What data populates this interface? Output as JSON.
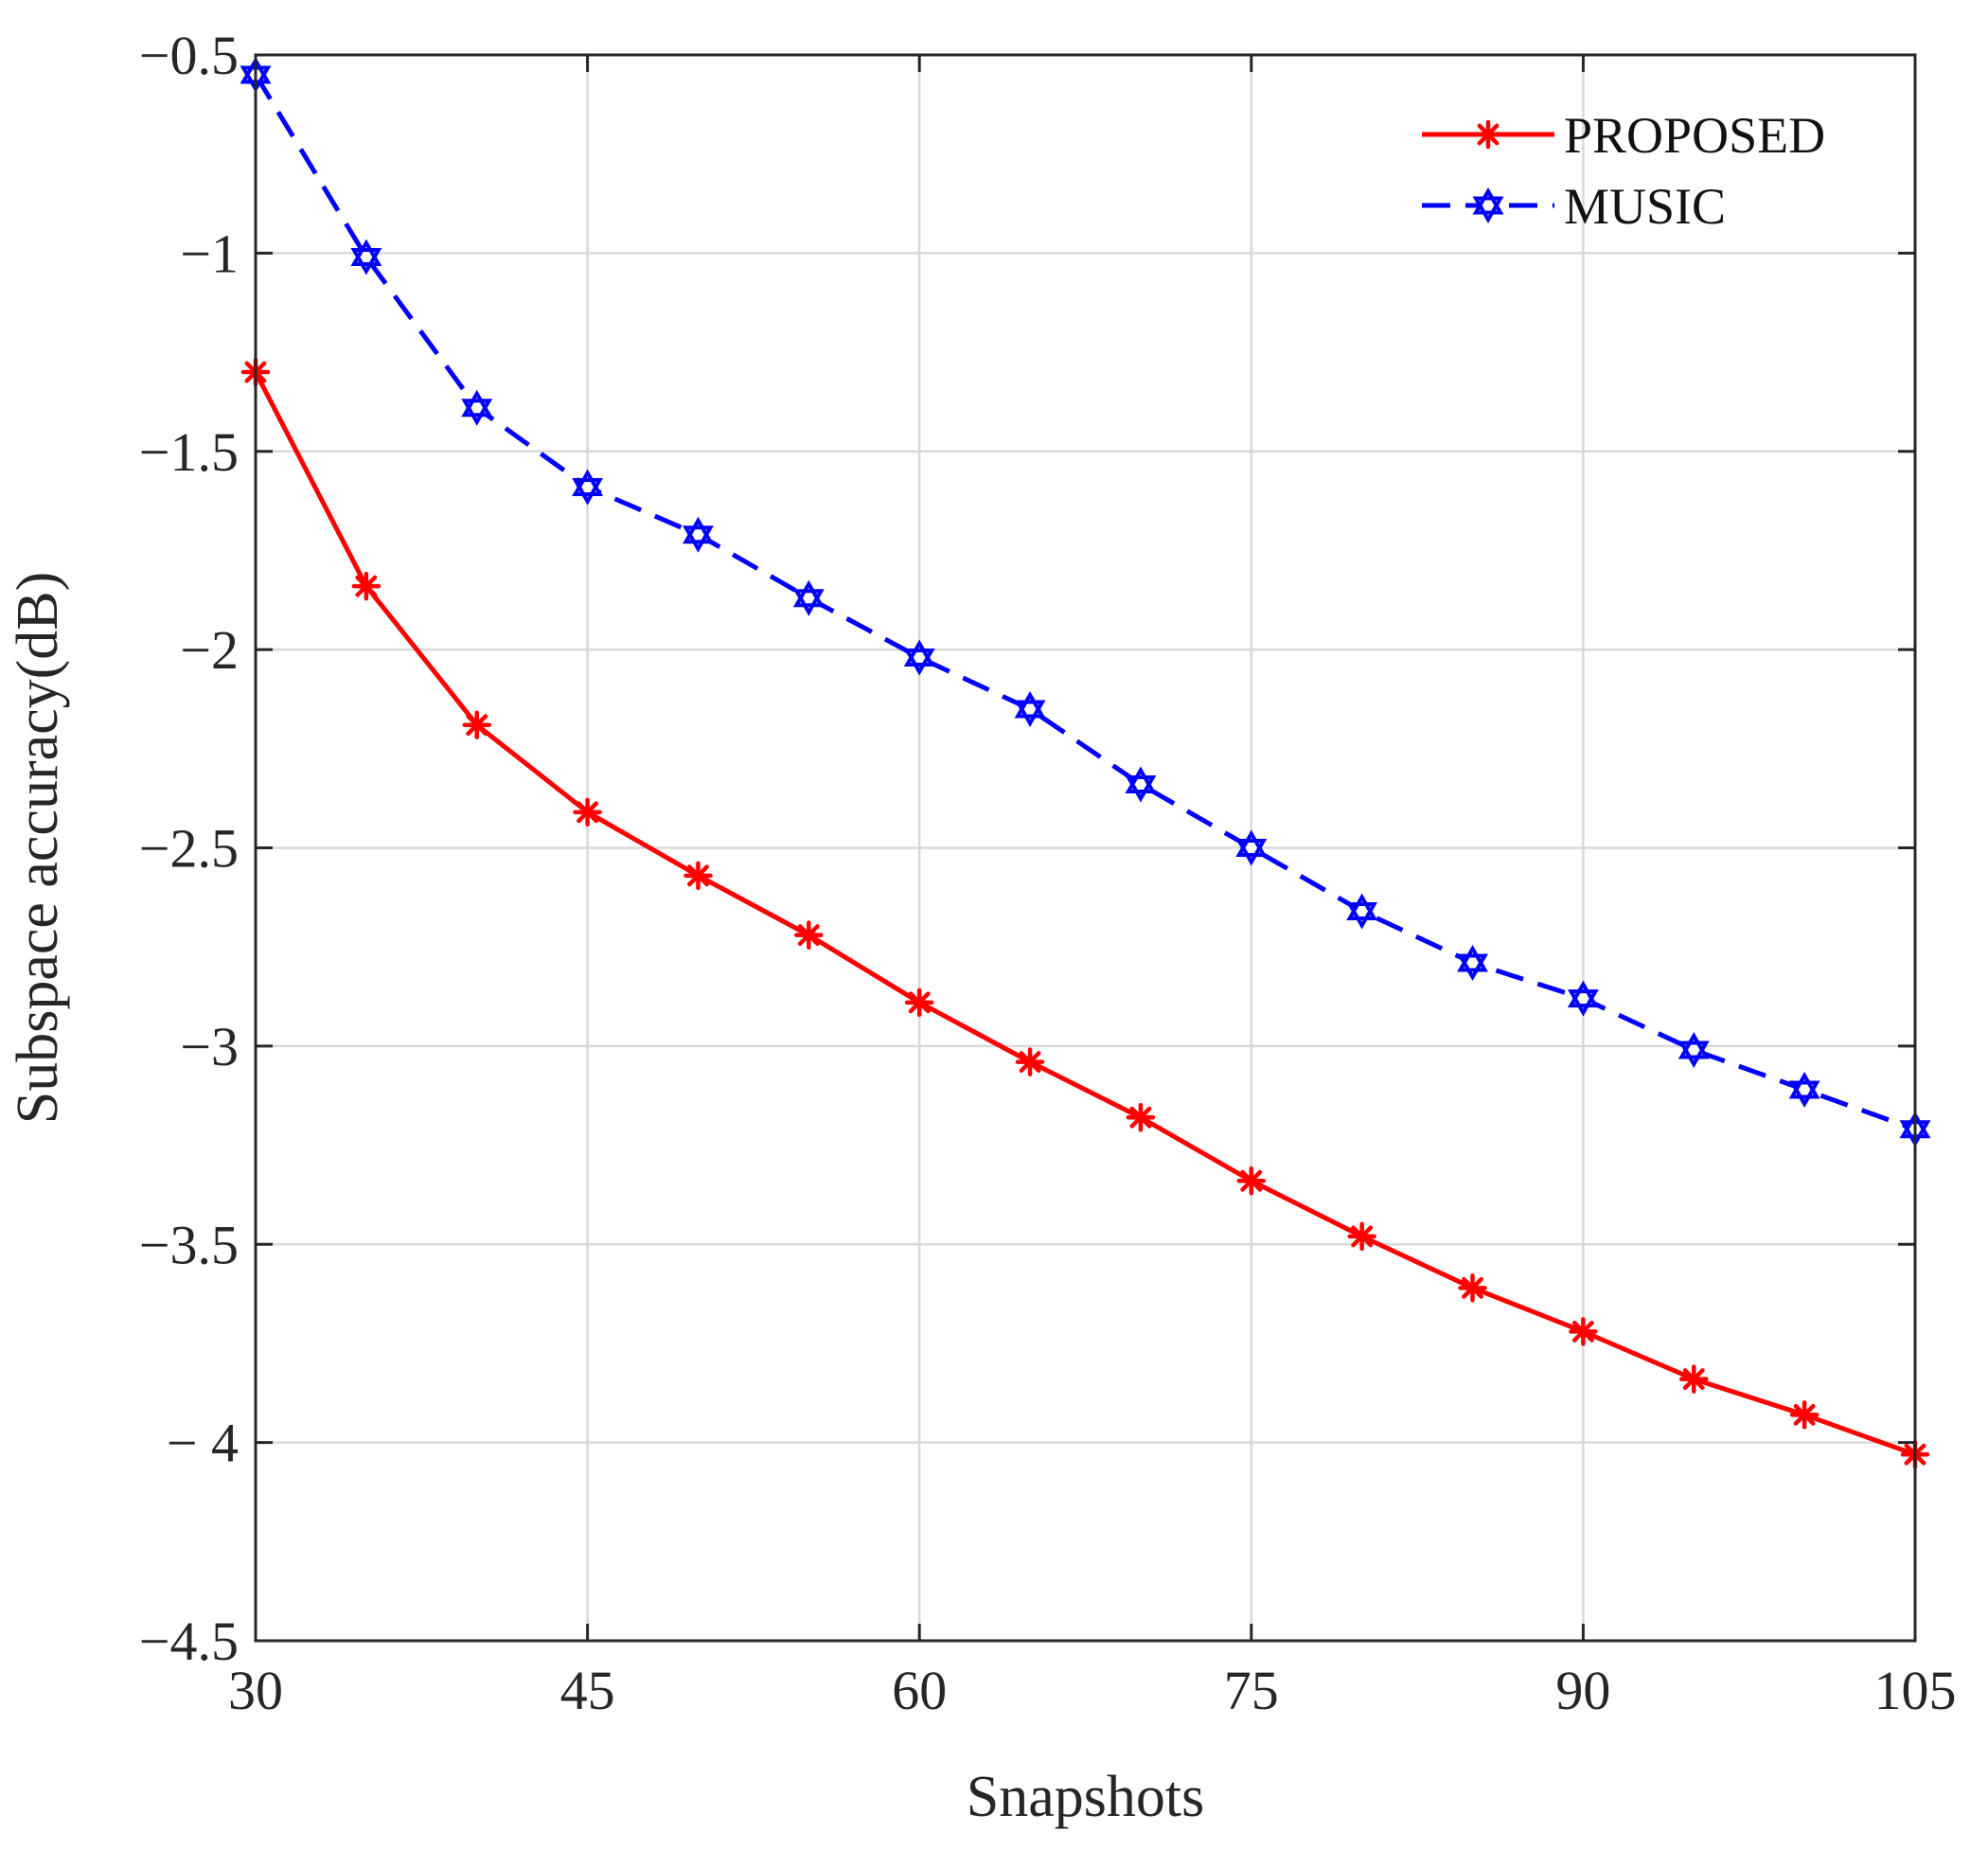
{
  "chart_data": {
    "type": "line",
    "title": "",
    "xlabel": "Snapshots",
    "ylabel": "Subspace accuracy(dB)",
    "xlim": [
      30,
      105
    ],
    "ylim": [
      -4.5,
      -0.5
    ],
    "x_ticks": [
      30,
      45,
      60,
      75,
      90,
      105
    ],
    "x_tick_labels": [
      "30",
      "45",
      "60",
      "75",
      "90",
      "105"
    ],
    "y_ticks": [
      -0.5,
      -1,
      -1.5,
      -2,
      -2.5,
      -3,
      -3.5,
      -4,
      -4.5
    ],
    "y_tick_labels": [
      "−0.5",
      "−1",
      "−1.5",
      "−2",
      "−2.5",
      "−3",
      "−3.5",
      "− 4",
      "−4.5"
    ],
    "grid": true,
    "legend_position": "top-right",
    "x": [
      30,
      35,
      40,
      45,
      50,
      55,
      60,
      65,
      70,
      75,
      80,
      85,
      90,
      95,
      100,
      105
    ],
    "series": [
      {
        "name": "PROPOSED",
        "color": "#ff0000",
        "line_style": "solid",
        "marker": "asterisk",
        "values": [
          -1.3,
          -1.84,
          -2.19,
          -2.41,
          -2.57,
          -2.72,
          -2.89,
          -3.04,
          -3.18,
          -3.34,
          -3.48,
          -3.61,
          -3.72,
          -3.84,
          -3.93,
          -4.03
        ]
      },
      {
        "name": "MUSIC",
        "color": "#0000ff",
        "line_style": "dashed",
        "marker": "hexagram",
        "values": [
          -0.55,
          -1.01,
          -1.39,
          -1.59,
          -1.71,
          -1.87,
          -2.02,
          -2.15,
          -2.34,
          -2.5,
          -2.66,
          -2.79,
          -2.88,
          -3.01,
          -3.11,
          -3.21
        ]
      }
    ]
  }
}
